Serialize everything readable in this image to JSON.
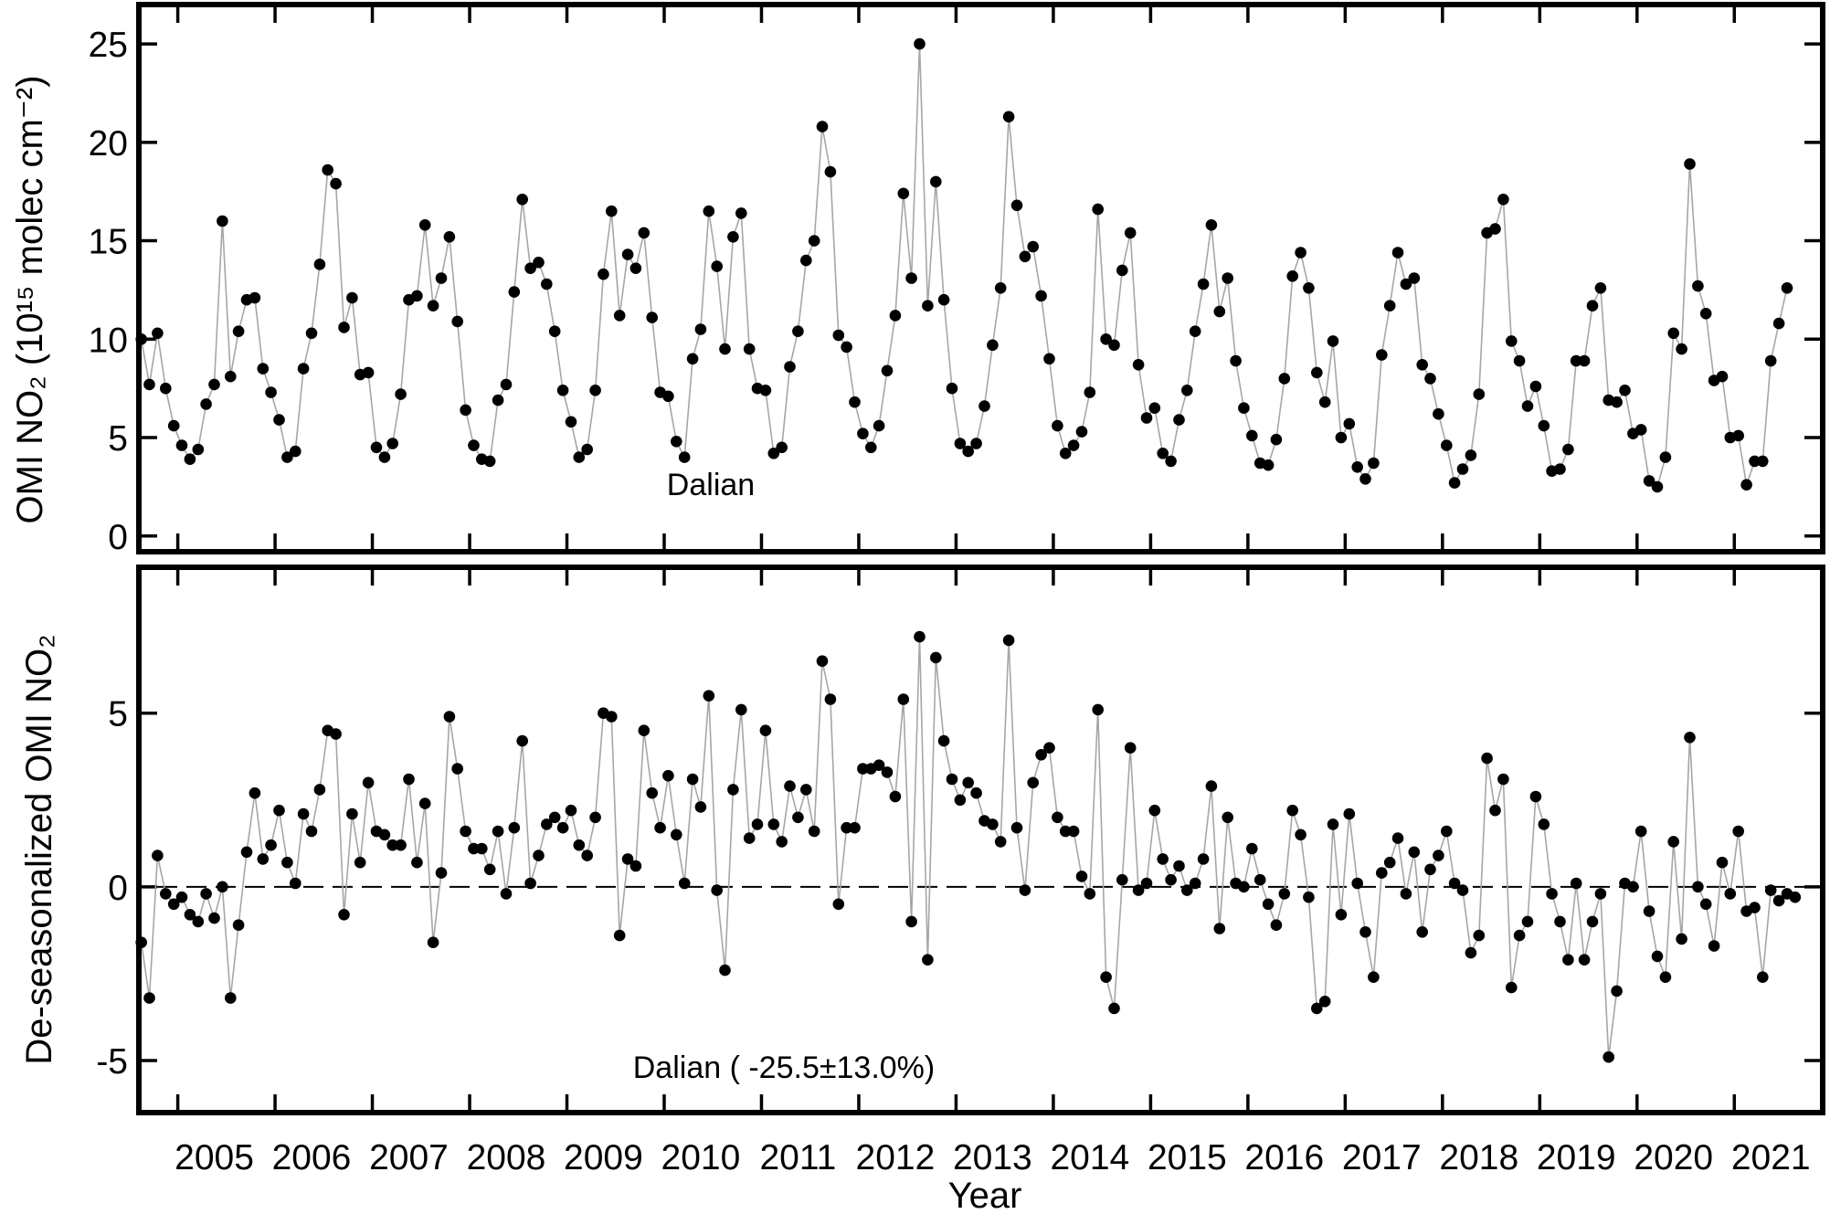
{
  "chart_data": [
    {
      "type": "scatter",
      "panel": "top",
      "ylabel": "OMI NO₂ (10¹⁵ molec cm⁻²)",
      "ylim": [
        -0.8,
        27.0
      ],
      "yticks": [
        0,
        5,
        10,
        15,
        20,
        25
      ],
      "annotation": "Dalian",
      "x_start": "2004-10",
      "x_step": "1 month",
      "values": [
        10.0,
        7.7,
        10.3,
        7.5,
        5.6,
        4.6,
        3.9,
        4.4,
        6.7,
        7.7,
        16.0,
        8.1,
        10.4,
        12.0,
        12.1,
        8.5,
        7.3,
        5.9,
        4.0,
        4.3,
        8.5,
        10.3,
        13.8,
        18.6,
        17.9,
        10.6,
        12.1,
        8.2,
        8.3,
        4.5,
        4.0,
        4.7,
        7.2,
        12.0,
        12.2,
        15.8,
        11.7,
        13.1,
        15.2,
        10.9,
        6.4,
        4.6,
        3.9,
        3.8,
        6.9,
        7.7,
        12.4,
        17.1,
        13.6,
        13.9,
        12.8,
        10.4,
        7.4,
        5.8,
        4.0,
        4.4,
        7.4,
        13.3,
        16.5,
        11.2,
        14.3,
        13.6,
        15.4,
        11.1,
        7.3,
        7.1,
        4.8,
        4.0,
        9.0,
        10.5,
        16.5,
        13.7,
        9.5,
        15.2,
        16.4,
        9.5,
        7.5,
        7.4,
        4.2,
        4.5,
        8.6,
        10.4,
        14.0,
        15.0,
        20.8,
        18.5,
        10.2,
        9.6,
        6.8,
        5.2,
        4.5,
        5.6,
        8.4,
        11.2,
        17.4,
        13.1,
        25.0,
        11.7,
        18.0,
        12.0,
        7.5,
        4.7,
        4.3,
        4.7,
        6.6,
        9.7,
        12.6,
        21.3,
        16.8,
        14.2,
        14.7,
        12.2,
        9.0,
        5.6,
        4.2,
        4.6,
        5.3,
        7.3,
        16.6,
        10.0,
        9.7,
        13.5,
        15.4,
        8.7,
        6.0,
        6.5,
        4.2,
        3.8,
        5.9,
        7.4,
        10.4,
        12.8,
        15.8,
        11.4,
        13.1,
        8.9,
        6.5,
        5.1,
        3.7,
        3.6,
        4.9,
        8.0,
        13.2,
        14.4,
        12.6,
        8.3,
        6.8,
        9.9,
        5.0,
        5.7,
        3.5,
        2.9,
        3.7,
        9.2,
        11.7,
        14.4,
        12.8,
        13.1,
        8.7,
        8.0,
        6.2,
        4.6,
        2.7,
        3.4,
        4.1,
        7.2,
        15.4,
        15.6,
        17.1,
        9.9,
        8.9,
        6.6,
        7.6,
        5.6,
        3.3,
        3.4,
        4.4,
        8.9,
        8.9,
        11.7,
        12.6,
        6.9,
        6.8,
        7.4,
        5.2,
        5.4,
        2.8,
        2.5,
        4.0,
        10.3,
        9.5,
        18.9,
        12.7,
        11.3,
        7.9,
        8.1,
        5.0,
        5.1,
        2.6,
        3.8,
        3.8,
        8.9,
        10.8,
        12.6
      ]
    },
    {
      "type": "scatter",
      "panel": "bottom",
      "ylabel": "De-seasonalized OMI NO₂",
      "xlabel": "Year",
      "ylim": [
        -6.5,
        9.2
      ],
      "yticks": [
        -5,
        0,
        5
      ],
      "annotation": "Dalian ( -25.5±13.0%)",
      "zero_line": "dashed",
      "x_start": "2004-10",
      "x_step": "1 month",
      "x_tick_labels": [
        "2005",
        "2006",
        "2007",
        "2008",
        "2009",
        "2010",
        "2011",
        "2012",
        "2013",
        "2014",
        "2015",
        "2016",
        "2017",
        "2018",
        "2019",
        "2020",
        "2021"
      ],
      "values": [
        -1.6,
        -3.2,
        0.9,
        -0.2,
        -0.5,
        -0.3,
        -0.8,
        -1.0,
        -0.2,
        -0.9,
        0.0,
        -3.2,
        -1.1,
        1.0,
        2.7,
        0.8,
        1.2,
        2.2,
        0.7,
        0.1,
        2.1,
        1.6,
        2.8,
        4.5,
        4.4,
        -0.8,
        2.1,
        0.7,
        3.0,
        1.6,
        1.5,
        1.2,
        1.2,
        3.1,
        0.7,
        2.4,
        -1.6,
        0.4,
        4.9,
        3.4,
        1.6,
        1.1,
        1.1,
        0.5,
        1.6,
        -0.2,
        1.7,
        4.2,
        0.1,
        0.9,
        1.8,
        2.0,
        1.7,
        2.2,
        1.2,
        0.9,
        2.0,
        5.0,
        4.9,
        -1.4,
        0.8,
        0.6,
        4.5,
        2.7,
        1.7,
        3.2,
        1.5,
        0.1,
        3.1,
        2.3,
        5.5,
        -0.1,
        -2.4,
        2.8,
        5.1,
        1.4,
        1.8,
        4.5,
        1.8,
        1.3,
        2.9,
        2.0,
        2.8,
        1.6,
        6.5,
        5.4,
        -0.5,
        1.7,
        1.7,
        3.4,
        3.4,
        3.5,
        3.3,
        2.6,
        5.4,
        -1.0,
        7.2,
        -2.1,
        6.6,
        4.2,
        3.1,
        2.5,
        3.0,
        2.7,
        1.9,
        1.8,
        1.3,
        7.1,
        1.7,
        -0.1,
        3.0,
        3.8,
        4.0,
        2.0,
        1.6,
        1.6,
        0.3,
        -0.2,
        5.1,
        -2.6,
        -3.5,
        0.2,
        4.0,
        -0.1,
        0.1,
        2.2,
        0.8,
        0.2,
        0.6,
        -0.1,
        0.1,
        0.8,
        2.9,
        -1.2,
        2.0,
        0.1,
        0.0,
        1.1,
        0.2,
        -0.5,
        -1.1,
        -0.2,
        2.2,
        1.5,
        -0.3,
        -3.5,
        -3.3,
        1.8,
        -0.8,
        2.1,
        0.1,
        -1.3,
        -2.6,
        0.4,
        0.7,
        1.4,
        -0.2,
        1.0,
        -1.3,
        0.5,
        0.9,
        1.6,
        0.1,
        -0.1,
        -1.9,
        -1.4,
        3.7,
        2.2,
        3.1,
        -2.9,
        -1.4,
        -1.0,
        2.6,
        1.8,
        -0.2,
        -1.0,
        -2.1,
        0.1,
        -2.1,
        -1.0,
        -0.2,
        -4.9,
        -3.0,
        0.1,
        0.0,
        1.6,
        -0.7,
        -2.0,
        -2.6,
        1.3,
        -1.5,
        4.3,
        0.0,
        -0.5,
        -1.7,
        0.7,
        -0.2,
        1.6,
        -0.7,
        -0.6,
        -2.6,
        -0.1,
        -0.4,
        -0.2,
        -0.3
      ]
    }
  ]
}
